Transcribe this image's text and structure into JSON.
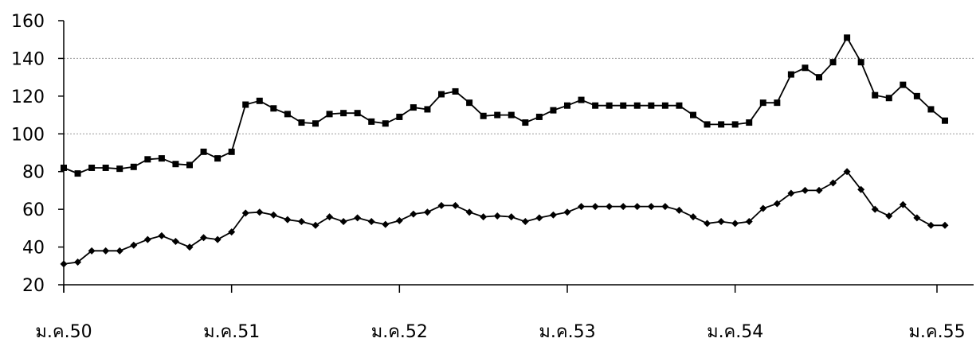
{
  "chart_data": {
    "type": "line",
    "title": "",
    "xlabel": "",
    "ylabel": "",
    "ylim": [
      20,
      160
    ],
    "yticks": [
      20,
      40,
      60,
      80,
      100,
      120,
      140,
      160
    ],
    "x_tick_labels": [
      "ม.ค.50",
      "ม.ค.51",
      "ม.ค.52",
      "ม.ค.53",
      "ม.ค.54",
      "ม.ค.55"
    ],
    "gridlines": [
      100,
      140
    ],
    "legend": "none",
    "colors": {
      "line": "#000000",
      "grid": "#9a9a9a"
    },
    "series": [
      {
        "marker": "square",
        "values": [
          82,
          79,
          82,
          82,
          81.5,
          82.5,
          86.5,
          87,
          84,
          83.5,
          90.5,
          87,
          90.5,
          115.5,
          117.5,
          113.5,
          110.5,
          106,
          105.5,
          110.5,
          111,
          111,
          106.5,
          105.5,
          109,
          114,
          113,
          121,
          122.5,
          116.5,
          109.5,
          110,
          110,
          106,
          109,
          112.5,
          115,
          118,
          115,
          115,
          115,
          115,
          115,
          115,
          115,
          110,
          105,
          105,
          105,
          106,
          116.5,
          116.5,
          131.5,
          135,
          130,
          138,
          151,
          138,
          120.5,
          119,
          126,
          120,
          113,
          107
        ]
      },
      {
        "marker": "diamond",
        "values": [
          31,
          32,
          38,
          38,
          38,
          41,
          44,
          46,
          43,
          40,
          45,
          44,
          48,
          58,
          58.5,
          57,
          54.5,
          53.5,
          51.5,
          56,
          53.5,
          55.5,
          53.5,
          52,
          54,
          57.5,
          58.5,
          62,
          62,
          58.5,
          56,
          56.5,
          56,
          53.5,
          55.5,
          57,
          58.5,
          61.5,
          61.5,
          61.5,
          61.5,
          61.5,
          61.5,
          61.5,
          59.5,
          56,
          52.5,
          53.5,
          52.5,
          53.5,
          60.5,
          63,
          68.5,
          70,
          70,
          74,
          80,
          70.5,
          60,
          56.5,
          62.5,
          55.5,
          51.5,
          51.5
        ]
      }
    ]
  }
}
